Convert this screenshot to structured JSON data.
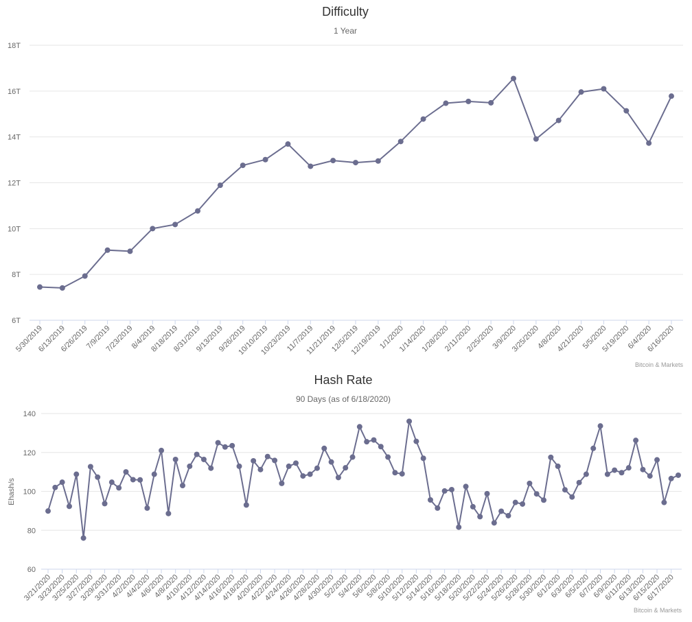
{
  "colors": {
    "series": "#6b6d8f",
    "grid": "#e6e6e6",
    "axis": "#ccd6eb"
  },
  "chart_data": [
    {
      "type": "line",
      "title": "Difficulty",
      "subtitle": "1 Year",
      "xlabel": "",
      "ylabel": "",
      "credit": "Bitcoin & Markets",
      "ylim": [
        6,
        18
      ],
      "ytick_values": [
        6,
        8,
        10,
        12,
        14,
        16,
        18
      ],
      "ytick_labels": [
        "6T",
        "8T",
        "10T",
        "12T",
        "14T",
        "16T",
        "18T"
      ],
      "grid": true,
      "legend": "none",
      "categories": [
        "5/30/2019",
        "6/13/2019",
        "6/26/2019",
        "7/9/2019",
        "7/23/2019",
        "8/4/2019",
        "8/18/2019",
        "8/31/2019",
        "9/13/2019",
        "9/26/2019",
        "10/10/2019",
        "10/23/2019",
        "11/7/2019",
        "11/21/2019",
        "12/5/2019",
        "12/19/2019",
        "1/1/2020",
        "1/14/2020",
        "1/28/2020",
        "2/11/2020",
        "2/25/2020",
        "3/9/2020",
        "3/25/2020",
        "4/8/2020",
        "4/21/2020",
        "5/5/2020",
        "5/19/2020",
        "6/4/2020",
        "6/16/2020"
      ],
      "values": [
        7.45,
        7.41,
        7.93,
        9.06,
        9.01,
        10.0,
        10.18,
        10.77,
        11.89,
        12.76,
        13.01,
        13.69,
        12.72,
        12.97,
        12.88,
        12.95,
        13.8,
        14.78,
        15.47,
        15.55,
        15.49,
        16.55,
        13.91,
        14.72,
        15.96,
        16.1,
        15.14,
        13.73,
        15.78
      ]
    },
    {
      "type": "line",
      "title": "Hash Rate",
      "subtitle": "90 Days (as of 6/18/2020)",
      "xlabel": "",
      "ylabel": "Ehash/s",
      "credit": "Bitcoin & Markets",
      "ylim": [
        60,
        140
      ],
      "ytick_values": [
        60,
        80,
        100,
        120,
        140
      ],
      "ytick_labels": [
        "60",
        "80",
        "100",
        "120",
        "140"
      ],
      "grid": true,
      "legend": "none",
      "xtick_labels": [
        "3/21/2020",
        "3/23/2020",
        "3/25/2020",
        "3/27/2020",
        "3/29/2020",
        "3/31/2020",
        "4/2/2020",
        "4/4/2020",
        "4/6/2020",
        "4/8/2020",
        "4/10/2020",
        "4/12/2020",
        "4/14/2020",
        "4/16/2020",
        "4/18/2020",
        "4/20/2020",
        "4/22/2020",
        "4/24/2020",
        "4/26/2020",
        "4/28/2020",
        "4/30/2020",
        "5/2/2020",
        "5/4/2020",
        "5/6/2020",
        "5/8/2020",
        "5/10/2020",
        "5/12/2020",
        "5/14/2020",
        "5/16/2020",
        "5/18/2020",
        "5/20/2020",
        "5/22/2020",
        "5/24/2020",
        "5/26/2020",
        "5/28/2020",
        "5/30/2020",
        "6/1/2020",
        "6/3/2020",
        "6/5/2020",
        "6/7/2020",
        "6/9/2020",
        "6/11/2020",
        "6/13/2020",
        "6/15/2020",
        "6/17/2020"
      ],
      "values": [
        89.9,
        102.0,
        104.7,
        92.3,
        108.8,
        76.0,
        112.7,
        107.3,
        93.7,
        104.7,
        101.8,
        110.0,
        106.0,
        105.9,
        91.4,
        108.8,
        121.0,
        88.6,
        116.4,
        103.0,
        112.9,
        119.0,
        116.4,
        111.9,
        125.0,
        122.8,
        123.5,
        112.9,
        93.0,
        115.7,
        111.2,
        117.9,
        115.9,
        104.1,
        112.9,
        114.5,
        107.9,
        108.8,
        111.9,
        122.1,
        115.1,
        107.1,
        112.1,
        117.6,
        133.2,
        125.5,
        126.4,
        123.0,
        117.6,
        109.6,
        109.0,
        136.0,
        125.7,
        117.0,
        95.6,
        91.4,
        100.2,
        100.9,
        81.6,
        102.5,
        92.1,
        87.0,
        98.8,
        83.8,
        89.8,
        87.5,
        94.3,
        93.5,
        104.1,
        98.7,
        95.5,
        117.5,
        112.9,
        100.8,
        97.1,
        104.5,
        108.8,
        122.1,
        133.6,
        108.8,
        110.9,
        109.6,
        112.1,
        126.2,
        111.2,
        107.9,
        116.2,
        94.3,
        106.6,
        108.3
      ]
    }
  ]
}
